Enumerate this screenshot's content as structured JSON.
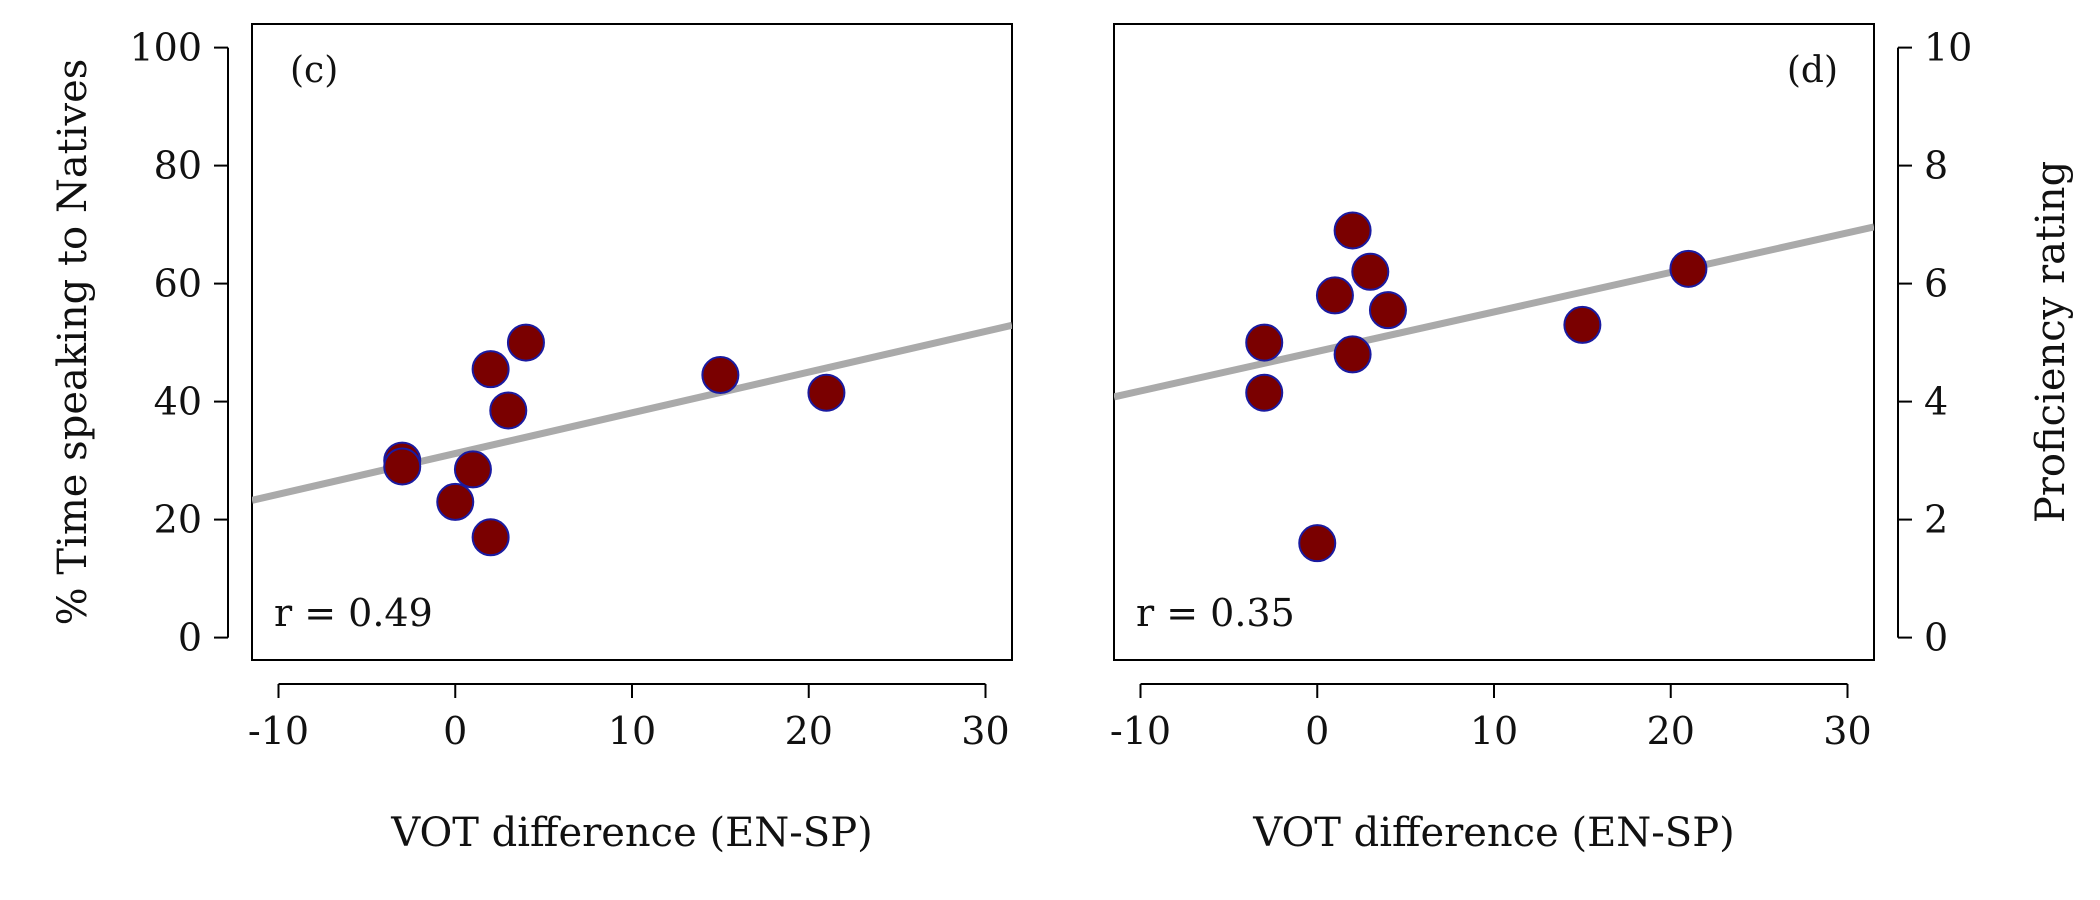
{
  "chart_data": [
    {
      "type": "scatter",
      "panel_label": "(c)",
      "annotation": "r = 0.49",
      "xlabel": "VOT difference (EN-SP)",
      "ylabel": "% Time speaking to Natives",
      "ylabel_side": "left",
      "xlim": [
        -11.5,
        31.5
      ],
      "ylim": [
        -3.8,
        104
      ],
      "xticks": [
        -10,
        0,
        10,
        20,
        30
      ],
      "yticks": [
        0,
        20,
        40,
        60,
        80,
        100
      ],
      "point_color": "#7a0000",
      "point_edge_color": "#1a1aa0",
      "fit_color": "#aaaaaa",
      "fit_line": {
        "intercept": 31.2,
        "slope": 0.69
      },
      "points": [
        {
          "x": -3,
          "y": 30
        },
        {
          "x": -3,
          "y": 29
        },
        {
          "x": 0,
          "y": 23
        },
        {
          "x": 1,
          "y": 28.5
        },
        {
          "x": 2,
          "y": 17
        },
        {
          "x": 2,
          "y": 45.5
        },
        {
          "x": 3,
          "y": 38.5
        },
        {
          "x": 4,
          "y": 50
        },
        {
          "x": 15,
          "y": 44.5
        },
        {
          "x": 21,
          "y": 41.5
        }
      ]
    },
    {
      "type": "scatter",
      "panel_label": "(d)",
      "annotation": "r = 0.35",
      "xlabel": "VOT difference (EN-SP)",
      "ylabel": "Proficiency rating",
      "ylabel_side": "right",
      "xlim": [
        -11.5,
        31.5
      ],
      "ylim": [
        -0.38,
        10.4
      ],
      "xticks": [
        -10,
        0,
        10,
        20,
        30
      ],
      "yticks": [
        0,
        2,
        4,
        6,
        8,
        10
      ],
      "point_color": "#7a0000",
      "point_edge_color": "#1a1aa0",
      "fit_color": "#aaaaaa",
      "fit_line": {
        "intercept": 4.85,
        "slope": 0.067
      },
      "points": [
        {
          "x": -3,
          "y": 5
        },
        {
          "x": -3,
          "y": 4.15
        },
        {
          "x": 0,
          "y": 1.6
        },
        {
          "x": 1,
          "y": 5.8
        },
        {
          "x": 2,
          "y": 6.9
        },
        {
          "x": 2,
          "y": 4.8
        },
        {
          "x": 3,
          "y": 6.2
        },
        {
          "x": 4,
          "y": 5.55
        },
        {
          "x": 15,
          "y": 5.3
        },
        {
          "x": 21,
          "y": 6.25
        }
      ]
    }
  ]
}
